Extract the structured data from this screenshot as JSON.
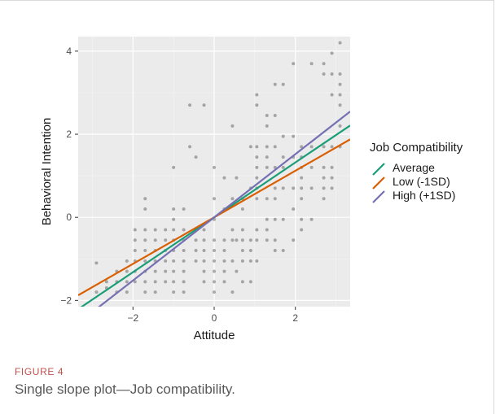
{
  "figure": {
    "label": "FIGURE 4",
    "caption": "Single slope plot—Job compatibility."
  },
  "chart_data": {
    "type": "scatter",
    "title": "",
    "xlabel": "Attitude",
    "ylabel": "Behavioral Intention",
    "xlim": [
      -3.35,
      3.35
    ],
    "ylim": [
      -2.15,
      4.35
    ],
    "xticks": [
      -2,
      0,
      2
    ],
    "yticks": [
      -2,
      0,
      2,
      4
    ],
    "grid": true,
    "legend": {
      "title": "Job Compatibility",
      "position": "right"
    },
    "series": [
      {
        "name": "Average",
        "kind": "line",
        "color": "#1b9e77",
        "slope": 0.66,
        "intercept": 0.0
      },
      {
        "name": "Low (-1SD)",
        "kind": "line",
        "color": "#d95f02",
        "slope": 0.56,
        "intercept": 0.0
      },
      {
        "name": "High (+1SD)",
        "kind": "line",
        "color": "#7570b3",
        "slope": 0.76,
        "intercept": 0.0
      }
    ],
    "points": [
      [
        -2.9,
        -1.1
      ],
      [
        -2.9,
        -1.8
      ],
      [
        -2.65,
        -1.7
      ],
      [
        -2.65,
        -1.55
      ],
      [
        -2.4,
        -1.3
      ],
      [
        -2.4,
        -1.55
      ],
      [
        -2.4,
        -1.8
      ],
      [
        -2.15,
        -1.05
      ],
      [
        -2.15,
        -1.3
      ],
      [
        -2.15,
        -1.55
      ],
      [
        -2.15,
        -1.8
      ],
      [
        -1.95,
        -0.3
      ],
      [
        -1.95,
        -0.55
      ],
      [
        -1.95,
        -0.8
      ],
      [
        -1.95,
        -1.05
      ],
      [
        -1.95,
        -1.3
      ],
      [
        -1.95,
        -1.55
      ],
      [
        -1.7,
        0.45
      ],
      [
        -1.7,
        0.2
      ],
      [
        -1.7,
        -0.3
      ],
      [
        -1.7,
        -0.55
      ],
      [
        -1.7,
        -0.8
      ],
      [
        -1.7,
        -1.05
      ],
      [
        -1.7,
        -1.3
      ],
      [
        -1.7,
        -1.55
      ],
      [
        -1.7,
        -1.8
      ],
      [
        -1.45,
        -0.3
      ],
      [
        -1.45,
        -0.55
      ],
      [
        -1.45,
        -0.8
      ],
      [
        -1.45,
        -1.05
      ],
      [
        -1.45,
        -1.3
      ],
      [
        -1.45,
        -1.55
      ],
      [
        -1.45,
        -1.8
      ],
      [
        -1.2,
        -0.3
      ],
      [
        -1.2,
        -0.55
      ],
      [
        -1.2,
        -0.8
      ],
      [
        -1.2,
        -1.05
      ],
      [
        -1.2,
        -1.3
      ],
      [
        -1.2,
        -1.55
      ],
      [
        -1.0,
        1.2
      ],
      [
        -1.0,
        0.2
      ],
      [
        -1.0,
        -0.05
      ],
      [
        -1.0,
        -0.3
      ],
      [
        -1.0,
        -0.55
      ],
      [
        -1.0,
        -0.8
      ],
      [
        -1.0,
        -1.05
      ],
      [
        -1.0,
        -1.3
      ],
      [
        -1.0,
        -1.55
      ],
      [
        -1.0,
        -1.8
      ],
      [
        -0.75,
        0.2
      ],
      [
        -0.75,
        -0.3
      ],
      [
        -0.75,
        -0.55
      ],
      [
        -0.75,
        -0.8
      ],
      [
        -0.75,
        -1.05
      ],
      [
        -0.75,
        -1.3
      ],
      [
        -0.75,
        -1.55
      ],
      [
        -0.75,
        -1.8
      ],
      [
        -0.6,
        2.7
      ],
      [
        -0.6,
        1.7
      ],
      [
        -0.45,
        1.45
      ],
      [
        -0.45,
        -0.3
      ],
      [
        -0.45,
        -0.55
      ],
      [
        -0.45,
        -0.8
      ],
      [
        -0.45,
        -1.05
      ],
      [
        -0.25,
        2.7
      ],
      [
        -0.25,
        -0.3
      ],
      [
        -0.25,
        -0.55
      ],
      [
        -0.25,
        -0.8
      ],
      [
        -0.25,
        -1.05
      ],
      [
        -0.25,
        -1.3
      ],
      [
        -0.25,
        -1.55
      ],
      [
        0.0,
        1.2
      ],
      [
        0.0,
        0.45
      ],
      [
        0.0,
        -0.05
      ],
      [
        0.0,
        -0.55
      ],
      [
        0.0,
        -0.8
      ],
      [
        0.0,
        -1.05
      ],
      [
        0.0,
        -1.3
      ],
      [
        0.0,
        -1.55
      ],
      [
        0.0,
        -1.8
      ],
      [
        0.25,
        0.95
      ],
      [
        0.25,
        0.2
      ],
      [
        0.25,
        -0.55
      ],
      [
        0.25,
        -0.8
      ],
      [
        0.25,
        -1.05
      ],
      [
        0.25,
        -1.3
      ],
      [
        0.25,
        -1.55
      ],
      [
        0.45,
        2.2
      ],
      [
        0.45,
        0.45
      ],
      [
        0.45,
        -0.3
      ],
      [
        0.45,
        -0.55
      ],
      [
        0.45,
        -1.05
      ],
      [
        0.45,
        -1.8
      ],
      [
        0.55,
        0.95
      ],
      [
        0.55,
        -0.55
      ],
      [
        0.55,
        -1.3
      ],
      [
        0.7,
        0.45
      ],
      [
        0.7,
        0.2
      ],
      [
        0.7,
        -0.3
      ],
      [
        0.7,
        -0.55
      ],
      [
        0.7,
        -0.8
      ],
      [
        0.7,
        -1.05
      ],
      [
        0.7,
        -1.55
      ],
      [
        0.9,
        1.7
      ],
      [
        0.9,
        0.7
      ],
      [
        0.9,
        -0.55
      ],
      [
        0.9,
        -0.8
      ],
      [
        0.9,
        -1.05
      ],
      [
        0.9,
        -1.55
      ],
      [
        1.05,
        2.95
      ],
      [
        1.05,
        2.7
      ],
      [
        1.05,
        1.7
      ],
      [
        1.05,
        1.45
      ],
      [
        1.05,
        1.2
      ],
      [
        1.05,
        0.95
      ],
      [
        1.05,
        0.7
      ],
      [
        1.05,
        0.45
      ],
      [
        1.05,
        -0.3
      ],
      [
        1.05,
        -0.55
      ],
      [
        1.05,
        -1.05
      ],
      [
        1.3,
        2.45
      ],
      [
        1.3,
        2.2
      ],
      [
        1.3,
        1.7
      ],
      [
        1.3,
        1.45
      ],
      [
        1.3,
        1.2
      ],
      [
        1.3,
        0.45
      ],
      [
        1.3,
        -0.05
      ],
      [
        1.3,
        -0.3
      ],
      [
        1.3,
        -0.55
      ],
      [
        1.5,
        3.2
      ],
      [
        1.5,
        2.45
      ],
      [
        1.5,
        1.7
      ],
      [
        1.5,
        1.2
      ],
      [
        1.5,
        0.7
      ],
      [
        1.5,
        0.45
      ],
      [
        1.5,
        -0.05
      ],
      [
        1.5,
        -0.55
      ],
      [
        1.5,
        -0.8
      ],
      [
        1.7,
        3.2
      ],
      [
        1.7,
        1.95
      ],
      [
        1.7,
        1.45
      ],
      [
        1.7,
        1.2
      ],
      [
        1.7,
        0.7
      ],
      [
        1.7,
        -0.05
      ],
      [
        1.7,
        -0.8
      ],
      [
        1.95,
        3.7
      ],
      [
        1.95,
        1.95
      ],
      [
        1.95,
        1.45
      ],
      [
        1.95,
        0.7
      ],
      [
        1.95,
        0.2
      ],
      [
        1.95,
        -0.55
      ],
      [
        2.15,
        1.7
      ],
      [
        2.15,
        1.45
      ],
      [
        2.15,
        1.2
      ],
      [
        2.15,
        0.95
      ],
      [
        2.15,
        0.7
      ],
      [
        2.15,
        0.45
      ],
      [
        2.15,
        -0.05
      ],
      [
        2.15,
        -0.3
      ],
      [
        2.4,
        3.7
      ],
      [
        2.4,
        1.7
      ],
      [
        2.4,
        1.2
      ],
      [
        2.4,
        0.7
      ],
      [
        2.4,
        -0.05
      ],
      [
        2.7,
        3.7
      ],
      [
        2.7,
        3.45
      ],
      [
        2.7,
        1.7
      ],
      [
        2.7,
        1.2
      ],
      [
        2.7,
        0.95
      ],
      [
        2.7,
        0.7
      ],
      [
        2.7,
        0.45
      ],
      [
        2.9,
        3.95
      ],
      [
        2.9,
        3.45
      ],
      [
        2.9,
        2.95
      ],
      [
        2.9,
        1.7
      ],
      [
        2.9,
        1.2
      ],
      [
        2.9,
        0.95
      ],
      [
        2.9,
        0.7
      ],
      [
        3.1,
        4.2
      ],
      [
        3.1,
        3.45
      ],
      [
        3.1,
        3.2
      ],
      [
        3.1,
        2.95
      ],
      [
        3.1,
        2.7
      ],
      [
        3.1,
        2.2
      ],
      [
        3.1,
        1.7
      ]
    ]
  }
}
